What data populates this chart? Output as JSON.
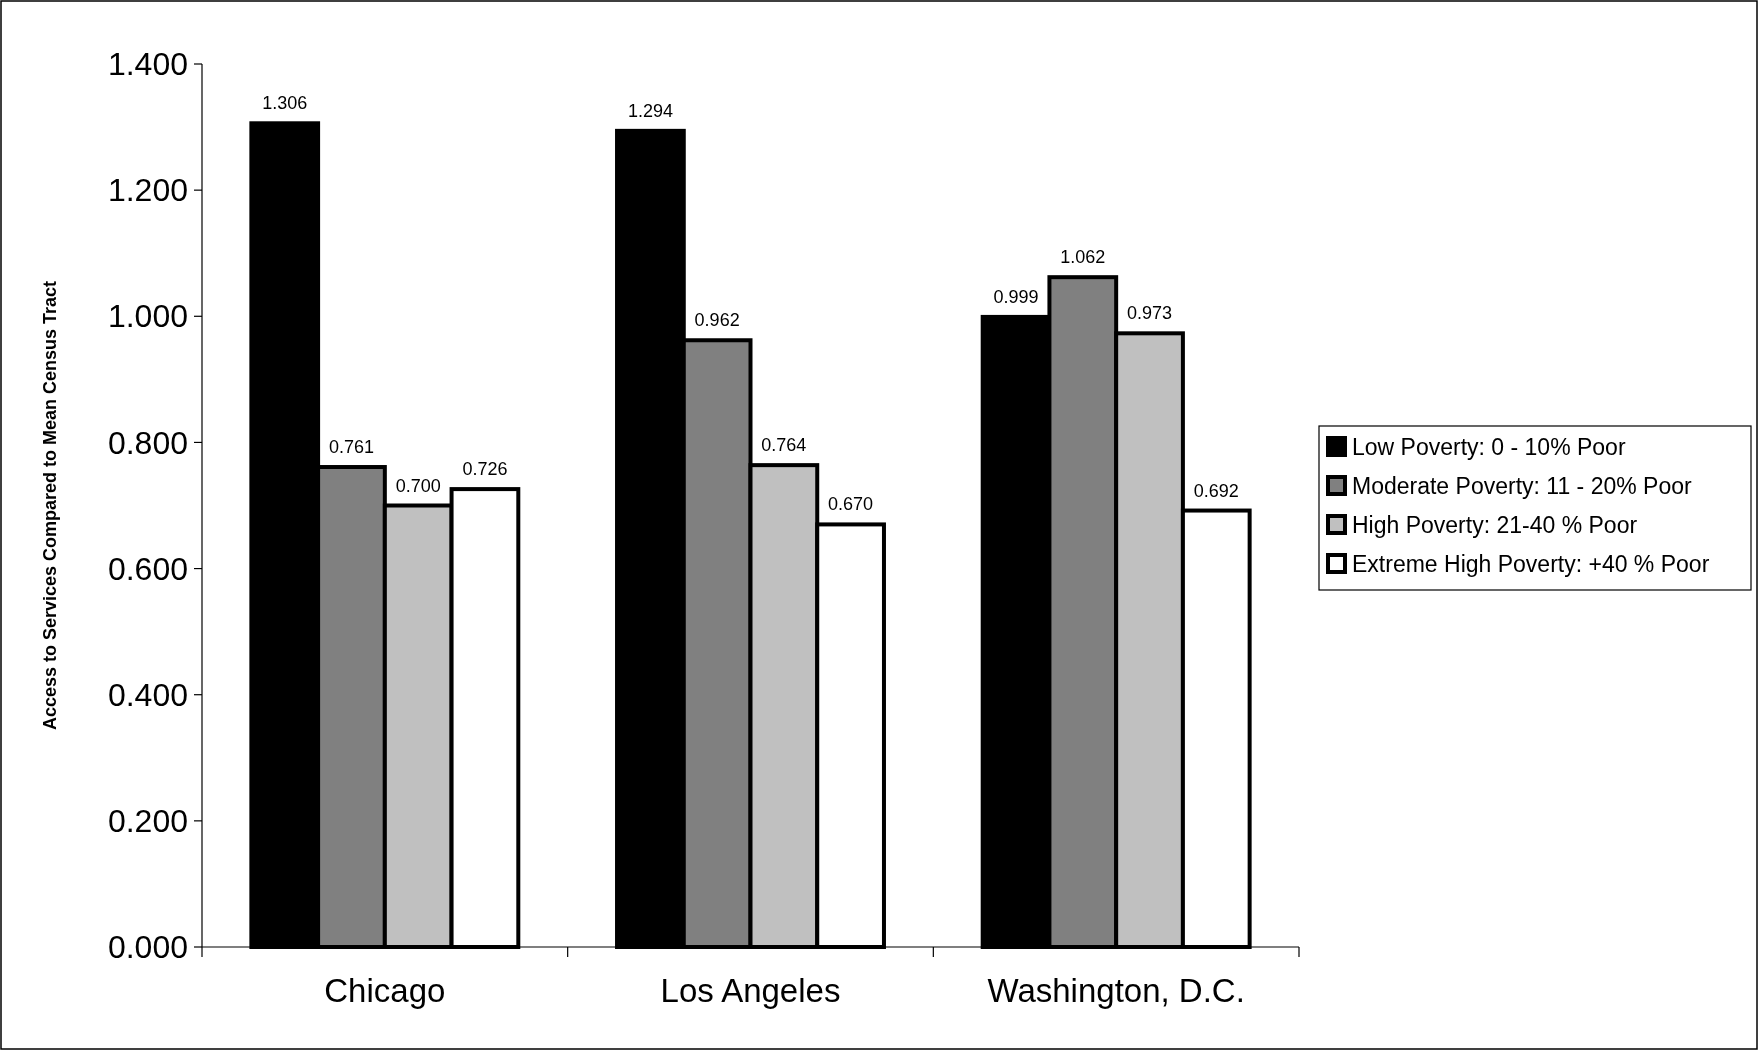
{
  "chart_data": {
    "type": "bar",
    "ylabel": "Access to Services Compared to Mean Census Tract",
    "categories": [
      "Chicago",
      "Los Angeles",
      "Washington, D.C."
    ],
    "series": [
      {
        "name": "Low Poverty: 0 - 10% Poor",
        "color": "#000000",
        "values": [
          1.306,
          1.294,
          0.999
        ],
        "value_labels": [
          "1.306",
          "1.294",
          "0.999"
        ]
      },
      {
        "name": "Moderate Poverty: 11 - 20% Poor",
        "color": "#808080",
        "values": [
          0.761,
          0.962,
          1.062
        ],
        "value_labels": [
          "0.761",
          "0.962",
          "1.062"
        ]
      },
      {
        "name": "High Poverty: 21-40 % Poor",
        "color": "#c0c0c0",
        "values": [
          0.7,
          0.764,
          0.973
        ],
        "value_labels": [
          "0.700",
          "0.764",
          "0.973"
        ]
      },
      {
        "name": "Extreme High Poverty: +40 % Poor",
        "color": "#ffffff",
        "values": [
          0.726,
          0.67,
          0.692
        ],
        "value_labels": [
          "0.726",
          "0.670",
          "0.692"
        ]
      }
    ],
    "ylim": [
      0,
      1.4
    ],
    "yticks": [
      {
        "value": 0,
        "label": "0.000"
      },
      {
        "value": 0.2,
        "label": "0.200"
      },
      {
        "value": 0.4,
        "label": "0.400"
      },
      {
        "value": 0.6,
        "label": "0.600"
      },
      {
        "value": 0.8,
        "label": "0.800"
      },
      {
        "value": 1,
        "label": "1.000"
      },
      {
        "value": 1.2,
        "label": "1.200"
      },
      {
        "value": 1.4,
        "label": "1.400"
      }
    ],
    "legend": "right",
    "grid": false
  }
}
